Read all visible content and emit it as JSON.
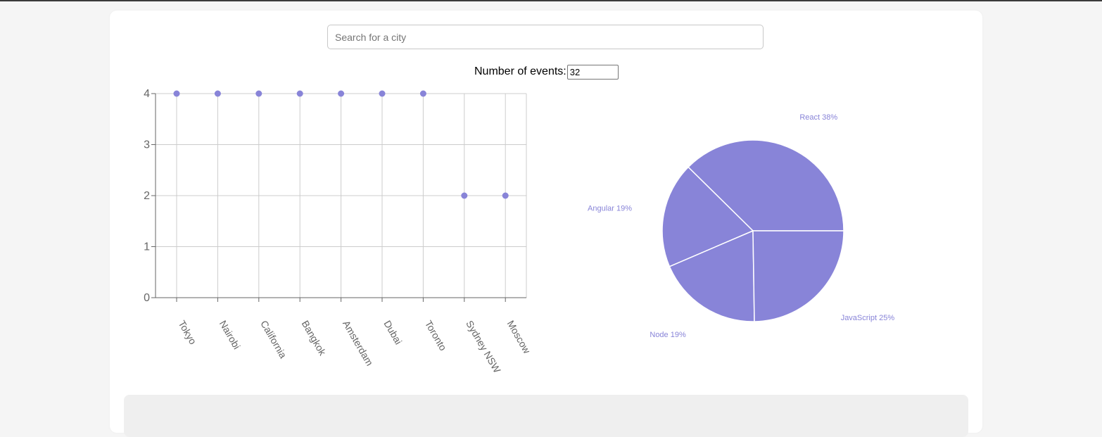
{
  "search": {
    "placeholder": "Search for a city",
    "value": ""
  },
  "events": {
    "label": "Number of events:",
    "value": "32"
  },
  "colors": {
    "accent": "#8884d8",
    "grid": "#cccccc",
    "axis": "#666666",
    "panel": "#efefef"
  },
  "chart_data": [
    {
      "type": "scatter",
      "categories": [
        "Tokyo",
        "Nairobi",
        "California",
        "Bangkok",
        "Amsterdam",
        "Dubai",
        "Toronto",
        "Sydney NSW",
        "Moscow"
      ],
      "values": [
        4,
        4,
        4,
        4,
        4,
        4,
        4,
        2,
        2
      ],
      "ylim": [
        0,
        4
      ],
      "yticks": [
        0,
        1,
        2,
        3,
        4
      ],
      "grid": true,
      "title": "",
      "xlabel": "",
      "ylabel": ""
    },
    {
      "type": "pie",
      "slices": [
        {
          "label": "React",
          "value": 38
        },
        {
          "label": "Angular",
          "value": 19
        },
        {
          "label": "Node",
          "value": 19
        },
        {
          "label": "JavaScript",
          "value": 25
        }
      ],
      "title": ""
    }
  ]
}
